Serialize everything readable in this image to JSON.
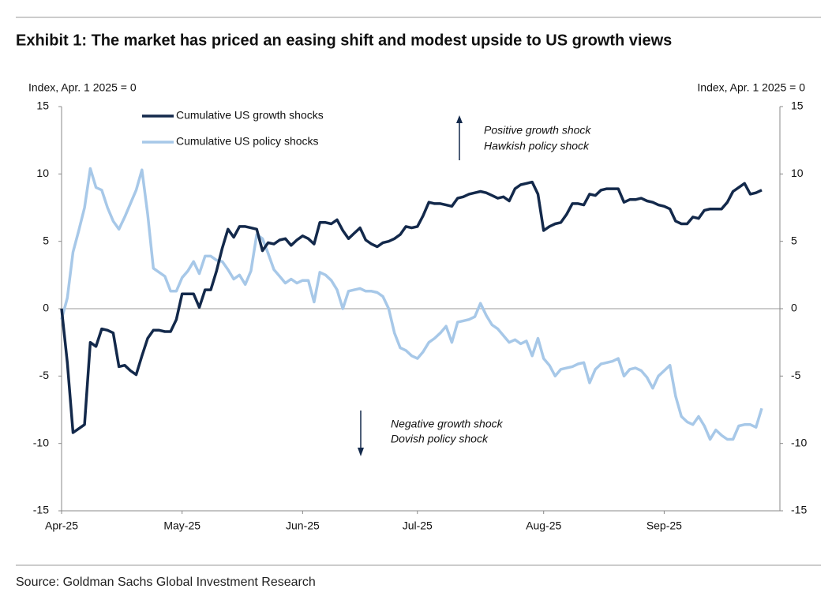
{
  "chart_data": {
    "type": "line",
    "title": "Exhibit 1:  The market has priced an easing shift and modest upside to US growth views",
    "y_label": "Index, Apr. 1 2025 = 0",
    "y2_label": "Index, Apr. 1 2025 = 0",
    "source": "Source: Goldman Sachs Global Investment Research",
    "annotations": [
      "Positive growth shock",
      "Hawkish policy shock",
      "Negative growth shock",
      "Dovish policy shock"
    ],
    "categories": [
      "Apr-25",
      null,
      null,
      null,
      null,
      null,
      null,
      null,
      null,
      null,
      null,
      null,
      null,
      null,
      null,
      null,
      null,
      null,
      null,
      null,
      null,
      "May-25",
      null,
      null,
      null,
      null,
      null,
      null,
      null,
      null,
      null,
      null,
      null,
      null,
      null,
      null,
      null,
      null,
      null,
      null,
      null,
      null,
      "Jun-25",
      null,
      null,
      null,
      null,
      null,
      null,
      null,
      null,
      null,
      null,
      null,
      null,
      null,
      null,
      null,
      null,
      null,
      null,
      null,
      "Jul-25",
      null,
      null,
      null,
      null,
      null,
      null,
      null,
      null,
      null,
      null,
      null,
      null,
      null,
      null,
      null,
      null,
      null,
      null,
      null,
      null,
      null,
      "Aug-25",
      null,
      null,
      null,
      null,
      null,
      null,
      null,
      null,
      null,
      null,
      null,
      null,
      null,
      null,
      null,
      null,
      null,
      null,
      null,
      null,
      "Sep-25",
      null,
      null,
      null,
      null,
      null,
      null,
      null,
      null,
      null,
      null,
      null,
      null,
      null,
      null,
      null,
      null,
      null
    ],
    "series": [
      {
        "name": "Cumulative US growth shocks",
        "color": "#13294b",
        "values": [
          0,
          -4,
          -9.2,
          -8.9,
          -8.6,
          -2.5,
          -2.8,
          -1.5,
          -1.6,
          -1.8,
          -4.3,
          -4.2,
          -4.6,
          -4.9,
          -3.5,
          -2.2,
          -1.6,
          -1.6,
          -1.7,
          -1.7,
          -0.8,
          1.1,
          1.1,
          1.1,
          0.1,
          1.4,
          1.4,
          2.8,
          4.5,
          5.9,
          5.3,
          6.1,
          6.1,
          6.0,
          5.9,
          4.3,
          4.9,
          4.8,
          5.1,
          5.2,
          4.7,
          5.1,
          5.4,
          5.2,
          4.8,
          6.4,
          6.4,
          6.3,
          6.6,
          5.8,
          5.2,
          5.6,
          6.0,
          5.1,
          4.8,
          4.6,
          4.9,
          5.0,
          5.2,
          5.5,
          6.1,
          6.0,
          6.1,
          6.9,
          7.9,
          7.8,
          7.8,
          7.7,
          7.6,
          8.2,
          8.3,
          8.5,
          8.6,
          8.7,
          8.6,
          8.4,
          8.2,
          8.3,
          8.0,
          8.9,
          9.2,
          9.3,
          9.4,
          8.5,
          5.8,
          6.1,
          6.3,
          6.4,
          7.0,
          7.8,
          7.8,
          7.7,
          8.5,
          8.4,
          8.8,
          8.9,
          8.9,
          8.9,
          7.9,
          8.1,
          8.1,
          8.2,
          8.0,
          7.9,
          7.7,
          7.6,
          7.4,
          6.5,
          6.3,
          6.3,
          6.8,
          6.7,
          7.3,
          7.4,
          7.4,
          7.4,
          7.9,
          8.7,
          9.0,
          9.3,
          8.5,
          8.6,
          8.8
        ]
      },
      {
        "name": "Cumulative US policy shocks",
        "color": "#a7c8e8",
        "values": [
          -0.8,
          0.8,
          4.2,
          5.8,
          7.5,
          10.4,
          9.0,
          8.8,
          7.5,
          6.5,
          5.9,
          6.8,
          7.8,
          8.8,
          10.3,
          7.0,
          3.0,
          2.7,
          2.4,
          1.3,
          1.3,
          2.3,
          2.8,
          3.5,
          2.6,
          3.9,
          3.9,
          3.6,
          3.5,
          2.9,
          2.2,
          2.5,
          1.8,
          2.8,
          5.5,
          5.2,
          4.1,
          2.9,
          2.4,
          1.9,
          2.2,
          1.9,
          2.1,
          2.1,
          0.5,
          2.7,
          2.5,
          2.1,
          1.4,
          0.0,
          1.3,
          1.4,
          1.5,
          1.3,
          1.3,
          1.2,
          0.9,
          0.0,
          -1.8,
          -2.9,
          -3.1,
          -3.5,
          -3.7,
          -3.2,
          -2.5,
          -2.2,
          -1.8,
          -1.3,
          -2.5,
          -1.0,
          -0.9,
          -0.8,
          -0.6,
          0.4,
          -0.5,
          -1.2,
          -1.5,
          -2.0,
          -2.5,
          -2.3,
          -2.6,
          -2.4,
          -3.5,
          -2.2,
          -3.7,
          -4.2,
          -5.0,
          -4.5,
          -4.4,
          -4.3,
          -4.1,
          -4.0,
          -5.5,
          -4.5,
          -4.1,
          -4.0,
          -3.9,
          -3.7,
          -5.0,
          -4.5,
          -4.4,
          -4.6,
          -5.1,
          -5.9,
          -5.0,
          -4.6,
          -4.2,
          -6.5,
          -8.0,
          -8.4,
          -8.6,
          -8.0,
          -8.7,
          -9.7,
          -9.0,
          -9.4,
          -9.7,
          -9.7,
          -8.7,
          -8.6,
          -8.6,
          -8.8,
          -7.4
        ]
      }
    ],
    "ylim": [
      -15,
      15
    ],
    "yticks": [
      -15,
      -10,
      -5,
      0,
      5,
      10,
      15
    ],
    "y2lim": [
      -15,
      15
    ],
    "y2ticks": [
      -15,
      -10,
      -5,
      0,
      5,
      10,
      15
    ]
  }
}
